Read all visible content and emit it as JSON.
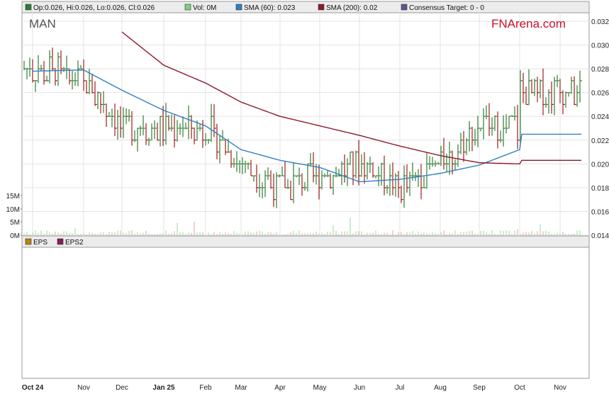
{
  "header": {
    "legend": [
      {
        "name": "ohlc",
        "label": "Op:0.026, Hi:0.026, Lo:0.026, Cl:0.026",
        "color": "#2e7d32"
      },
      {
        "name": "vol",
        "label": "Vol: 0M",
        "color": "#7fd07f"
      },
      {
        "name": "sma60",
        "label": "SMA (60): 0.023",
        "color": "#2f80c0"
      },
      {
        "name": "sma200",
        "label": "SMA (200): 0.02",
        "color": "#8b1a2b"
      },
      {
        "name": "consensus",
        "label": "Consensus Target: 0 - 0",
        "color": "#5a5a8c"
      }
    ]
  },
  "ticker": "MAN",
  "brand": {
    "fn": "FN",
    "rest": "Arena.com",
    "color": "#c8102e"
  },
  "eps_legend": [
    {
      "name": "eps",
      "label": "EPS",
      "color": "#b8860b"
    },
    {
      "name": "eps2",
      "label": "EPS2",
      "color": "#8b1a5a"
    }
  ],
  "colors": {
    "up": "#2e7d32",
    "down": "#a01c1c",
    "vol_up": "#9ad89a",
    "vol_down": "#e8a0a0",
    "sma60": "#2f80c0",
    "sma200": "#8b1a2b"
  },
  "chart_data": {
    "type": "line",
    "price_ylim": [
      0.014,
      0.032
    ],
    "price_ticks": [
      "0.014",
      "0.016",
      "0.018",
      "0.020",
      "0.022",
      "0.024",
      "0.026",
      "0.028",
      "0.030",
      "0.032"
    ],
    "volume_ticks": [
      "0M",
      "5M",
      "10M",
      "15M"
    ],
    "x_ticks": [
      "Oct 24",
      "Nov",
      "Dec",
      "Jan 25",
      "Feb",
      "Mar",
      "Apr",
      "May",
      "Jun",
      "Jul",
      "Aug",
      "Sep",
      "Oct",
      "Nov"
    ],
    "series": [
      {
        "name": "SMA (60)",
        "points": [
          [
            "Oct 24",
            0.0278
          ],
          [
            "Nov",
            0.0279
          ],
          [
            "Dec",
            0.0262
          ],
          [
            "Jan 25",
            0.0245
          ],
          [
            "Feb",
            0.0232
          ],
          [
            "Mar",
            0.0212
          ],
          [
            "Apr",
            0.0203
          ],
          [
            "May",
            0.0197
          ],
          [
            "Jun",
            0.0185
          ],
          [
            "Jul",
            0.0187
          ],
          [
            "Aug",
            0.0192
          ],
          [
            "Sep",
            0.0199
          ],
          [
            "Oct",
            0.0212
          ],
          [
            "Nov",
            0.0225
          ]
        ]
      },
      {
        "name": "SMA (200)",
        "points": [
          [
            "Dec",
            0.0311
          ],
          [
            "Jan 25",
            0.0283
          ],
          [
            "Feb",
            0.0268
          ],
          [
            "Mar",
            0.0252
          ],
          [
            "Apr",
            0.024
          ],
          [
            "May",
            0.0232
          ],
          [
            "Jun",
            0.0224
          ],
          [
            "Jul",
            0.0215
          ],
          [
            "Aug",
            0.0207
          ],
          [
            "Sep",
            0.0201
          ],
          [
            "Oct",
            0.02
          ],
          [
            "Nov",
            0.0203
          ]
        ]
      },
      {
        "name": "Close",
        "points": [
          [
            "Oct 24",
            0.028
          ],
          [
            "Nov",
            0.027
          ],
          [
            "Dec",
            0.023
          ],
          [
            "Jan 25",
            0.023
          ],
          [
            "Feb",
            0.023
          ],
          [
            "Mar",
            0.02
          ],
          [
            "Apr",
            0.018
          ],
          [
            "May",
            0.019
          ],
          [
            "Jun",
            0.02
          ],
          [
            "Jul",
            0.018
          ],
          [
            "Aug",
            0.02
          ],
          [
            "Sep",
            0.023
          ],
          [
            "Oct",
            0.023
          ],
          [
            "Nov",
            0.026
          ]
        ]
      }
    ]
  }
}
